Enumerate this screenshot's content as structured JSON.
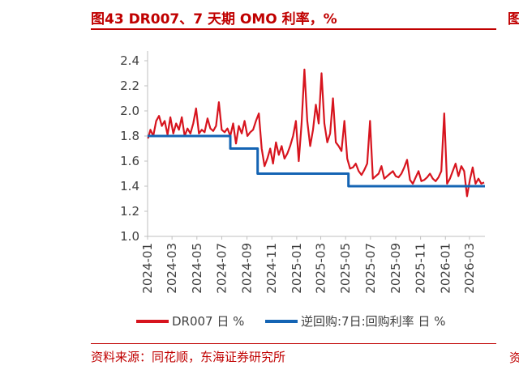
{
  "figure": {
    "title": "图43  DR007、7 天期 OMO 利率，%",
    "source": "资料来源：同花顺，东海证券研究所",
    "edge_glyph_top": "图",
    "edge_glyph_bottom": "资"
  },
  "chart_data": {
    "type": "line",
    "ylim": [
      1.0,
      2.4
    ],
    "y_ticks": [
      "1.0",
      "1.2",
      "1.4",
      "1.6",
      "1.8",
      "2.0",
      "2.2",
      "2.4"
    ],
    "x_ticks": [
      "2024-01",
      "2024-03",
      "2024-05",
      "2024-07",
      "2024-09",
      "2024-11",
      "2025-01",
      "2025-03",
      "2025-05",
      "2025-07",
      "2025-09",
      "2025-11",
      "2026-01",
      "2026-03"
    ],
    "x_range": [
      "2024-01-01",
      "2026-04-08"
    ],
    "grid": false,
    "legend_position": "bottom",
    "colors": {
      "dr007": "#d7141e",
      "omo": "#1464b4",
      "axis": "#bfbfbf"
    },
    "series": [
      {
        "name": "DR007 日 %",
        "points": [
          [
            "2024-01-02",
            1.78
          ],
          [
            "2024-01-08",
            1.85
          ],
          [
            "2024-01-15",
            1.8
          ],
          [
            "2024-01-22",
            1.92
          ],
          [
            "2024-01-29",
            1.96
          ],
          [
            "2024-02-05",
            1.88
          ],
          [
            "2024-02-12",
            1.92
          ],
          [
            "2024-02-19",
            1.81
          ],
          [
            "2024-02-26",
            1.95
          ],
          [
            "2024-03-04",
            1.82
          ],
          [
            "2024-03-11",
            1.9
          ],
          [
            "2024-03-18",
            1.85
          ],
          [
            "2024-03-25",
            1.95
          ],
          [
            "2024-04-01",
            1.8
          ],
          [
            "2024-04-08",
            1.86
          ],
          [
            "2024-04-15",
            1.82
          ],
          [
            "2024-04-22",
            1.9
          ],
          [
            "2024-04-29",
            2.02
          ],
          [
            "2024-05-06",
            1.82
          ],
          [
            "2024-05-13",
            1.85
          ],
          [
            "2024-05-20",
            1.83
          ],
          [
            "2024-05-27",
            1.94
          ],
          [
            "2024-06-03",
            1.86
          ],
          [
            "2024-06-10",
            1.84
          ],
          [
            "2024-06-17",
            1.88
          ],
          [
            "2024-06-24",
            2.07
          ],
          [
            "2024-07-01",
            1.85
          ],
          [
            "2024-07-08",
            1.83
          ],
          [
            "2024-07-15",
            1.86
          ],
          [
            "2024-07-22",
            1.8
          ],
          [
            "2024-07-29",
            1.9
          ],
          [
            "2024-08-05",
            1.74
          ],
          [
            "2024-08-12",
            1.88
          ],
          [
            "2024-08-19",
            1.82
          ],
          [
            "2024-08-26",
            1.92
          ],
          [
            "2024-09-02",
            1.8
          ],
          [
            "2024-09-09",
            1.83
          ],
          [
            "2024-09-16",
            1.85
          ],
          [
            "2024-09-23",
            1.92
          ],
          [
            "2024-09-30",
            1.98
          ],
          [
            "2024-10-07",
            1.7
          ],
          [
            "2024-10-14",
            1.56
          ],
          [
            "2024-10-21",
            1.62
          ],
          [
            "2024-10-28",
            1.7
          ],
          [
            "2024-11-04",
            1.58
          ],
          [
            "2024-11-11",
            1.75
          ],
          [
            "2024-11-18",
            1.65
          ],
          [
            "2024-11-25",
            1.72
          ],
          [
            "2024-12-02",
            1.62
          ],
          [
            "2024-12-09",
            1.66
          ],
          [
            "2024-12-16",
            1.72
          ],
          [
            "2024-12-23",
            1.8
          ],
          [
            "2024-12-30",
            1.92
          ],
          [
            "2025-01-06",
            1.6
          ],
          [
            "2025-01-13",
            1.9
          ],
          [
            "2025-01-20",
            2.33
          ],
          [
            "2025-01-27",
            1.92
          ],
          [
            "2025-02-03",
            1.72
          ],
          [
            "2025-02-10",
            1.85
          ],
          [
            "2025-02-17",
            2.05
          ],
          [
            "2025-02-24",
            1.9
          ],
          [
            "2025-03-03",
            2.3
          ],
          [
            "2025-03-10",
            1.9
          ],
          [
            "2025-03-17",
            1.75
          ],
          [
            "2025-03-24",
            1.82
          ],
          [
            "2025-03-31",
            2.1
          ],
          [
            "2025-04-07",
            1.75
          ],
          [
            "2025-04-14",
            1.72
          ],
          [
            "2025-04-21",
            1.68
          ],
          [
            "2025-04-28",
            1.92
          ],
          [
            "2025-05-05",
            1.62
          ],
          [
            "2025-05-12",
            1.54
          ],
          [
            "2025-05-19",
            1.55
          ],
          [
            "2025-05-26",
            1.58
          ],
          [
            "2025-06-02",
            1.52
          ],
          [
            "2025-06-09",
            1.49
          ],
          [
            "2025-06-16",
            1.53
          ],
          [
            "2025-06-23",
            1.58
          ],
          [
            "2025-06-30",
            1.92
          ],
          [
            "2025-07-07",
            1.46
          ],
          [
            "2025-07-14",
            1.48
          ],
          [
            "2025-07-21",
            1.5
          ],
          [
            "2025-07-28",
            1.56
          ],
          [
            "2025-08-04",
            1.46
          ],
          [
            "2025-08-11",
            1.48
          ],
          [
            "2025-08-18",
            1.5
          ],
          [
            "2025-08-25",
            1.52
          ],
          [
            "2025-09-01",
            1.48
          ],
          [
            "2025-09-08",
            1.47
          ],
          [
            "2025-09-15",
            1.5
          ],
          [
            "2025-09-22",
            1.55
          ],
          [
            "2025-09-29",
            1.61
          ],
          [
            "2025-10-06",
            1.45
          ],
          [
            "2025-10-13",
            1.42
          ],
          [
            "2025-10-20",
            1.47
          ],
          [
            "2025-10-27",
            1.52
          ],
          [
            "2025-11-03",
            1.44
          ],
          [
            "2025-11-10",
            1.45
          ],
          [
            "2025-11-17",
            1.47
          ],
          [
            "2025-11-24",
            1.5
          ],
          [
            "2025-12-01",
            1.46
          ],
          [
            "2025-12-08",
            1.44
          ],
          [
            "2025-12-15",
            1.47
          ],
          [
            "2025-12-22",
            1.52
          ],
          [
            "2025-12-29",
            1.98
          ],
          [
            "2026-01-05",
            1.42
          ],
          [
            "2026-01-12",
            1.46
          ],
          [
            "2026-01-19",
            1.52
          ],
          [
            "2026-01-26",
            1.58
          ],
          [
            "2026-02-02",
            1.48
          ],
          [
            "2026-02-09",
            1.56
          ],
          [
            "2026-02-16",
            1.52
          ],
          [
            "2026-02-23",
            1.32
          ],
          [
            "2026-03-02",
            1.45
          ],
          [
            "2026-03-09",
            1.55
          ],
          [
            "2026-03-16",
            1.42
          ],
          [
            "2026-03-23",
            1.46
          ],
          [
            "2026-03-30",
            1.42
          ],
          [
            "2026-04-06",
            1.43
          ]
        ]
      },
      {
        "name": "逆回购:7日:回购利率 日 %",
        "points": [
          [
            "2024-01-01",
            1.8
          ],
          [
            "2024-07-22",
            1.8
          ],
          [
            "2024-07-22",
            1.7
          ],
          [
            "2024-09-27",
            1.7
          ],
          [
            "2024-09-27",
            1.5
          ],
          [
            "2025-05-08",
            1.5
          ],
          [
            "2025-05-08",
            1.4
          ],
          [
            "2026-04-08",
            1.4
          ]
        ]
      }
    ]
  }
}
